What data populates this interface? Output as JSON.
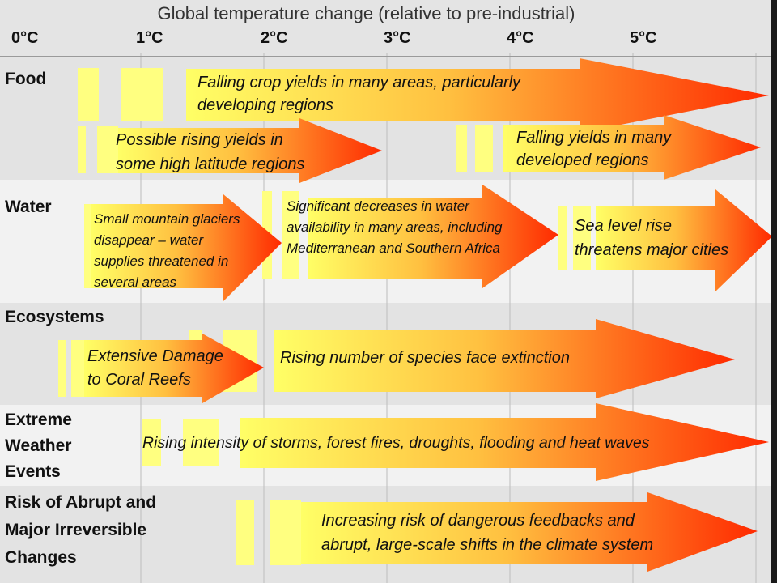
{
  "title": "Global temperature change (relative to pre-industrial)",
  "axis_ticks": [
    "0°C",
    "1°C",
    "2°C",
    "3°C",
    "4°C",
    "5°C"
  ],
  "rows": {
    "food": "Food",
    "water": "Water",
    "ecosystems": "Ecosystems",
    "extreme": [
      "Extreme",
      "Weather",
      "Events"
    ],
    "abrupt": [
      "Risk of Abrupt and",
      "Major Irreversible",
      "Changes"
    ]
  },
  "impacts": {
    "food_falling_crop": [
      "Falling crop yields in many areas, particularly",
      "developing regions"
    ],
    "food_rising_yields": [
      "Possible rising yields in",
      "some high latitude regions"
    ],
    "food_falling_developed": [
      "Falling yields in many",
      "developed regions"
    ],
    "water_glaciers": [
      "Small mountain glaciers",
      "disappear  – water",
      "supplies threatened in",
      "several areas"
    ],
    "water_decreases": [
      "Significant decreases in water",
      "availability in many areas, including",
      "Mediterranean and Southern Africa"
    ],
    "water_sea_level": [
      "Sea level rise",
      "threatens major cities"
    ],
    "eco_coral": [
      "Extensive Damage",
      "to Coral Reefs"
    ],
    "eco_species": [
      "Rising number of species face extinction"
    ],
    "extreme_storms": [
      "Rising intensity of storms, forest fires, droughts, flooding and heat waves"
    ],
    "abrupt_feedbacks": [
      "Increasing risk of dangerous feedbacks and",
      "abrupt, large-scale shifts in the climate system"
    ]
  },
  "colors": {
    "arrow_start": "#ffff66",
    "arrow_mid": "#ffb030",
    "arrow_end": "#ff2a00",
    "band_light": "#f0f0f0",
    "band_dark": "#e6e6e6",
    "grid": "#bcbcbc"
  }
}
